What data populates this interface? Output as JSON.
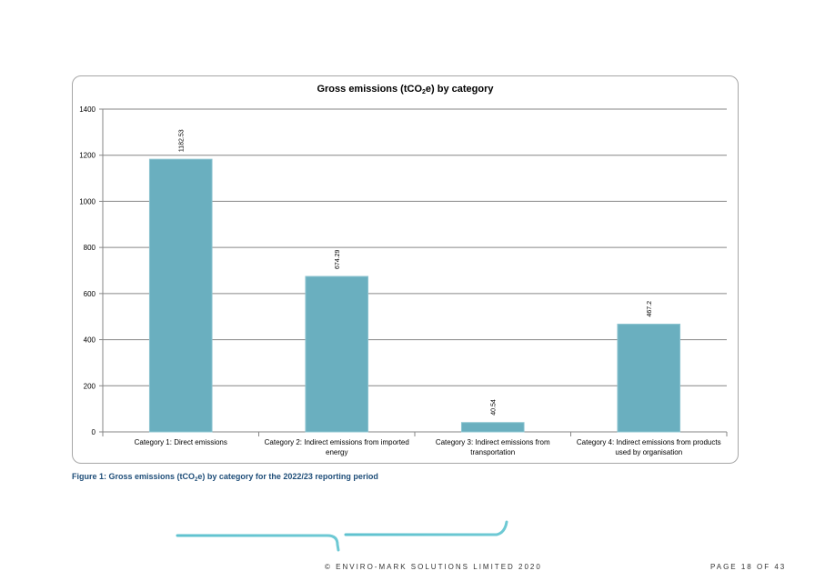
{
  "chart_data": {
    "type": "bar",
    "title_parts": [
      "Gross emissions (tCO",
      "2",
      "e) by category"
    ],
    "categories": [
      [
        "Category 1: Direct emissions"
      ],
      [
        "Category 2: Indirect emissions from imported",
        "energy"
      ],
      [
        "Category 3: Indirect emissions from",
        "transportation"
      ],
      [
        "Category 4: Indirect emissions from products",
        "used by organisation"
      ]
    ],
    "values": [
      1182.53,
      674.29,
      40.54,
      467.2
    ],
    "data_labels": [
      "1182.53",
      "674.29",
      "40.54",
      "467.2"
    ],
    "ylim": [
      0,
      1400
    ],
    "yticks": [
      0,
      200,
      400,
      600,
      800,
      1000,
      1200,
      1400
    ],
    "grid": true,
    "bar_color": "#6aafbf",
    "legend": "none"
  },
  "caption": {
    "prefix": "Figure 1: Gross emissions (tCO",
    "subscript": "2",
    "suffix": "e) by category for the 2022/23 reporting period",
    "color": "#1f4e79"
  },
  "footer": {
    "copyright": "© ENVIRO-MARK SOLUTIONS LIMITED 2020",
    "page": "PAGE 18 OF 43"
  },
  "colors": {
    "teal": "#5fc2cf",
    "purple": "#7a6fb8",
    "navy": "#2b2a6b"
  }
}
